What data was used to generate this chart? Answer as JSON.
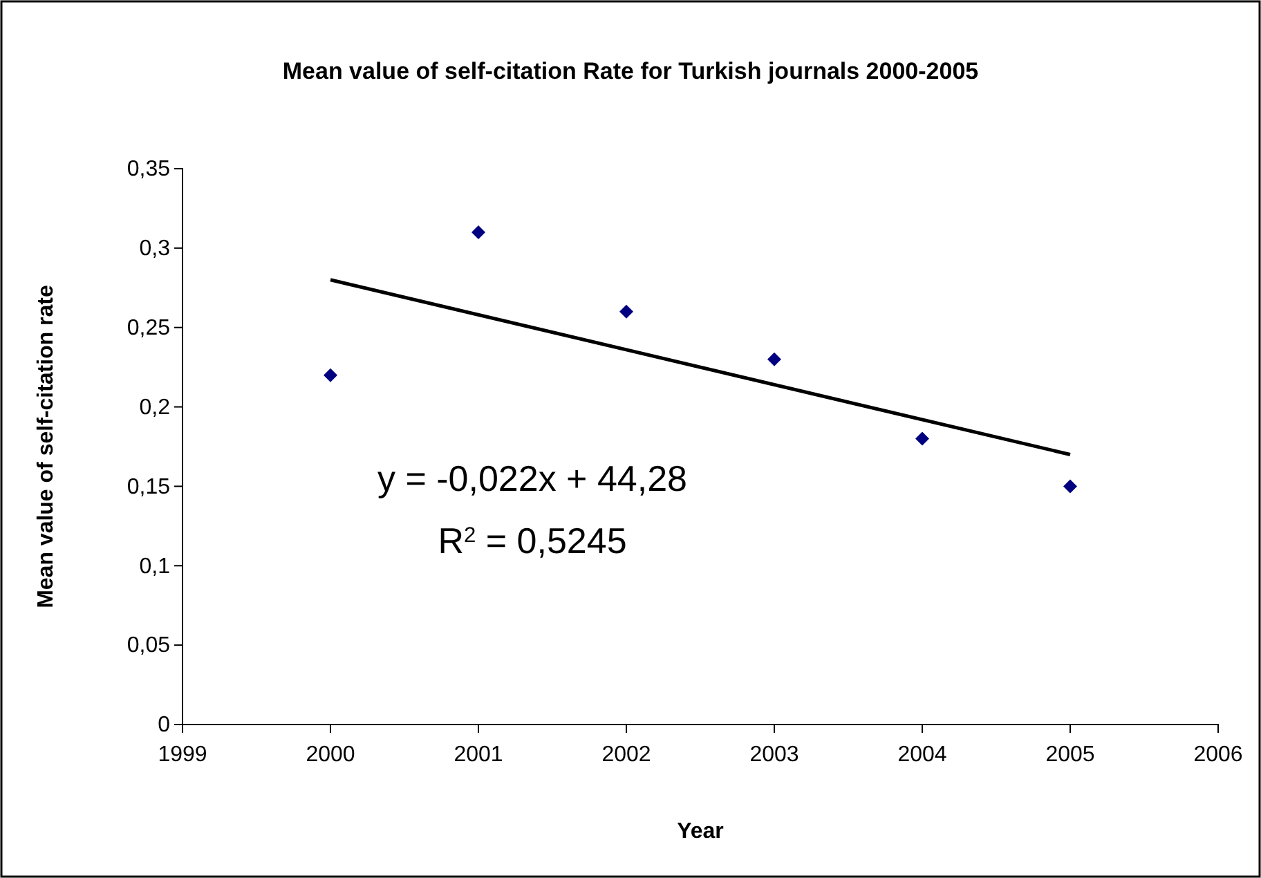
{
  "chart_data": {
    "type": "scatter",
    "title": "Mean value of self-citation Rate for Turkish journals 2000-2005",
    "xlabel": "Year",
    "ylabel": "Mean value of self-citation rate",
    "x": [
      2000,
      2001,
      2002,
      2003,
      2004,
      2005
    ],
    "series": [
      {
        "color": "#000080",
        "marker": "diamond",
        "values": [
          0.22,
          0.31,
          0.26,
          0.23,
          0.18,
          0.15
        ]
      },
      {
        "type": "line",
        "color": "#000000",
        "marker": "none",
        "x": [
          2000,
          2005
        ],
        "values": [
          0.28,
          0.17
        ]
      }
    ],
    "xlim": [
      1999,
      2006
    ],
    "xticks": [
      1999,
      2000,
      2001,
      2002,
      2003,
      2004,
      2005,
      2006
    ],
    "ylim": [
      0,
      0.35
    ],
    "yticks": [
      0,
      {
        "value": 0.05,
        "label": "0,05"
      },
      {
        "value": 0.1,
        "label": "0,1"
      },
      {
        "value": 0.15,
        "label": "0,15"
      },
      {
        "value": 0.2,
        "label": "0,2"
      },
      {
        "value": 0.25,
        "label": "0,25"
      },
      {
        "value": 0.3,
        "label": "0,3"
      },
      {
        "value": 0.35,
        "label": "0,35"
      }
    ],
    "annotations": [
      "y = -0,022x + 44,28",
      "R$^{2}$ = 0,5245"
    ],
    "line_style": "solid",
    "grid": false
  }
}
